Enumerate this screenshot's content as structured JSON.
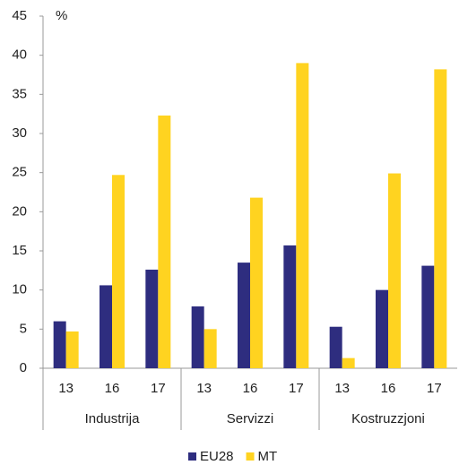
{
  "chart_data": {
    "type": "bar",
    "unit_label": "%",
    "groups": [
      {
        "name": "Industrija",
        "categories": [
          "13",
          "16",
          "17"
        ]
      },
      {
        "name": "Servizzi",
        "categories": [
          "13",
          "16",
          "17"
        ]
      },
      {
        "name": "Kostruzzjoni",
        "categories": [
          "13",
          "16",
          "17"
        ]
      }
    ],
    "series": [
      {
        "name": "EU28",
        "color": "#2e2d7f",
        "values": [
          6.0,
          10.6,
          12.6,
          7.9,
          13.5,
          15.7,
          5.3,
          10.0,
          13.1
        ]
      },
      {
        "name": "MT",
        "color": "#ffd320",
        "values": [
          4.7,
          24.7,
          32.3,
          5.0,
          21.8,
          39.0,
          1.3,
          24.9,
          38.2
        ]
      }
    ],
    "ylim": [
      0,
      45
    ],
    "yticks": [
      0,
      5,
      10,
      15,
      20,
      25,
      30,
      35,
      40,
      45
    ],
    "grid": false
  }
}
